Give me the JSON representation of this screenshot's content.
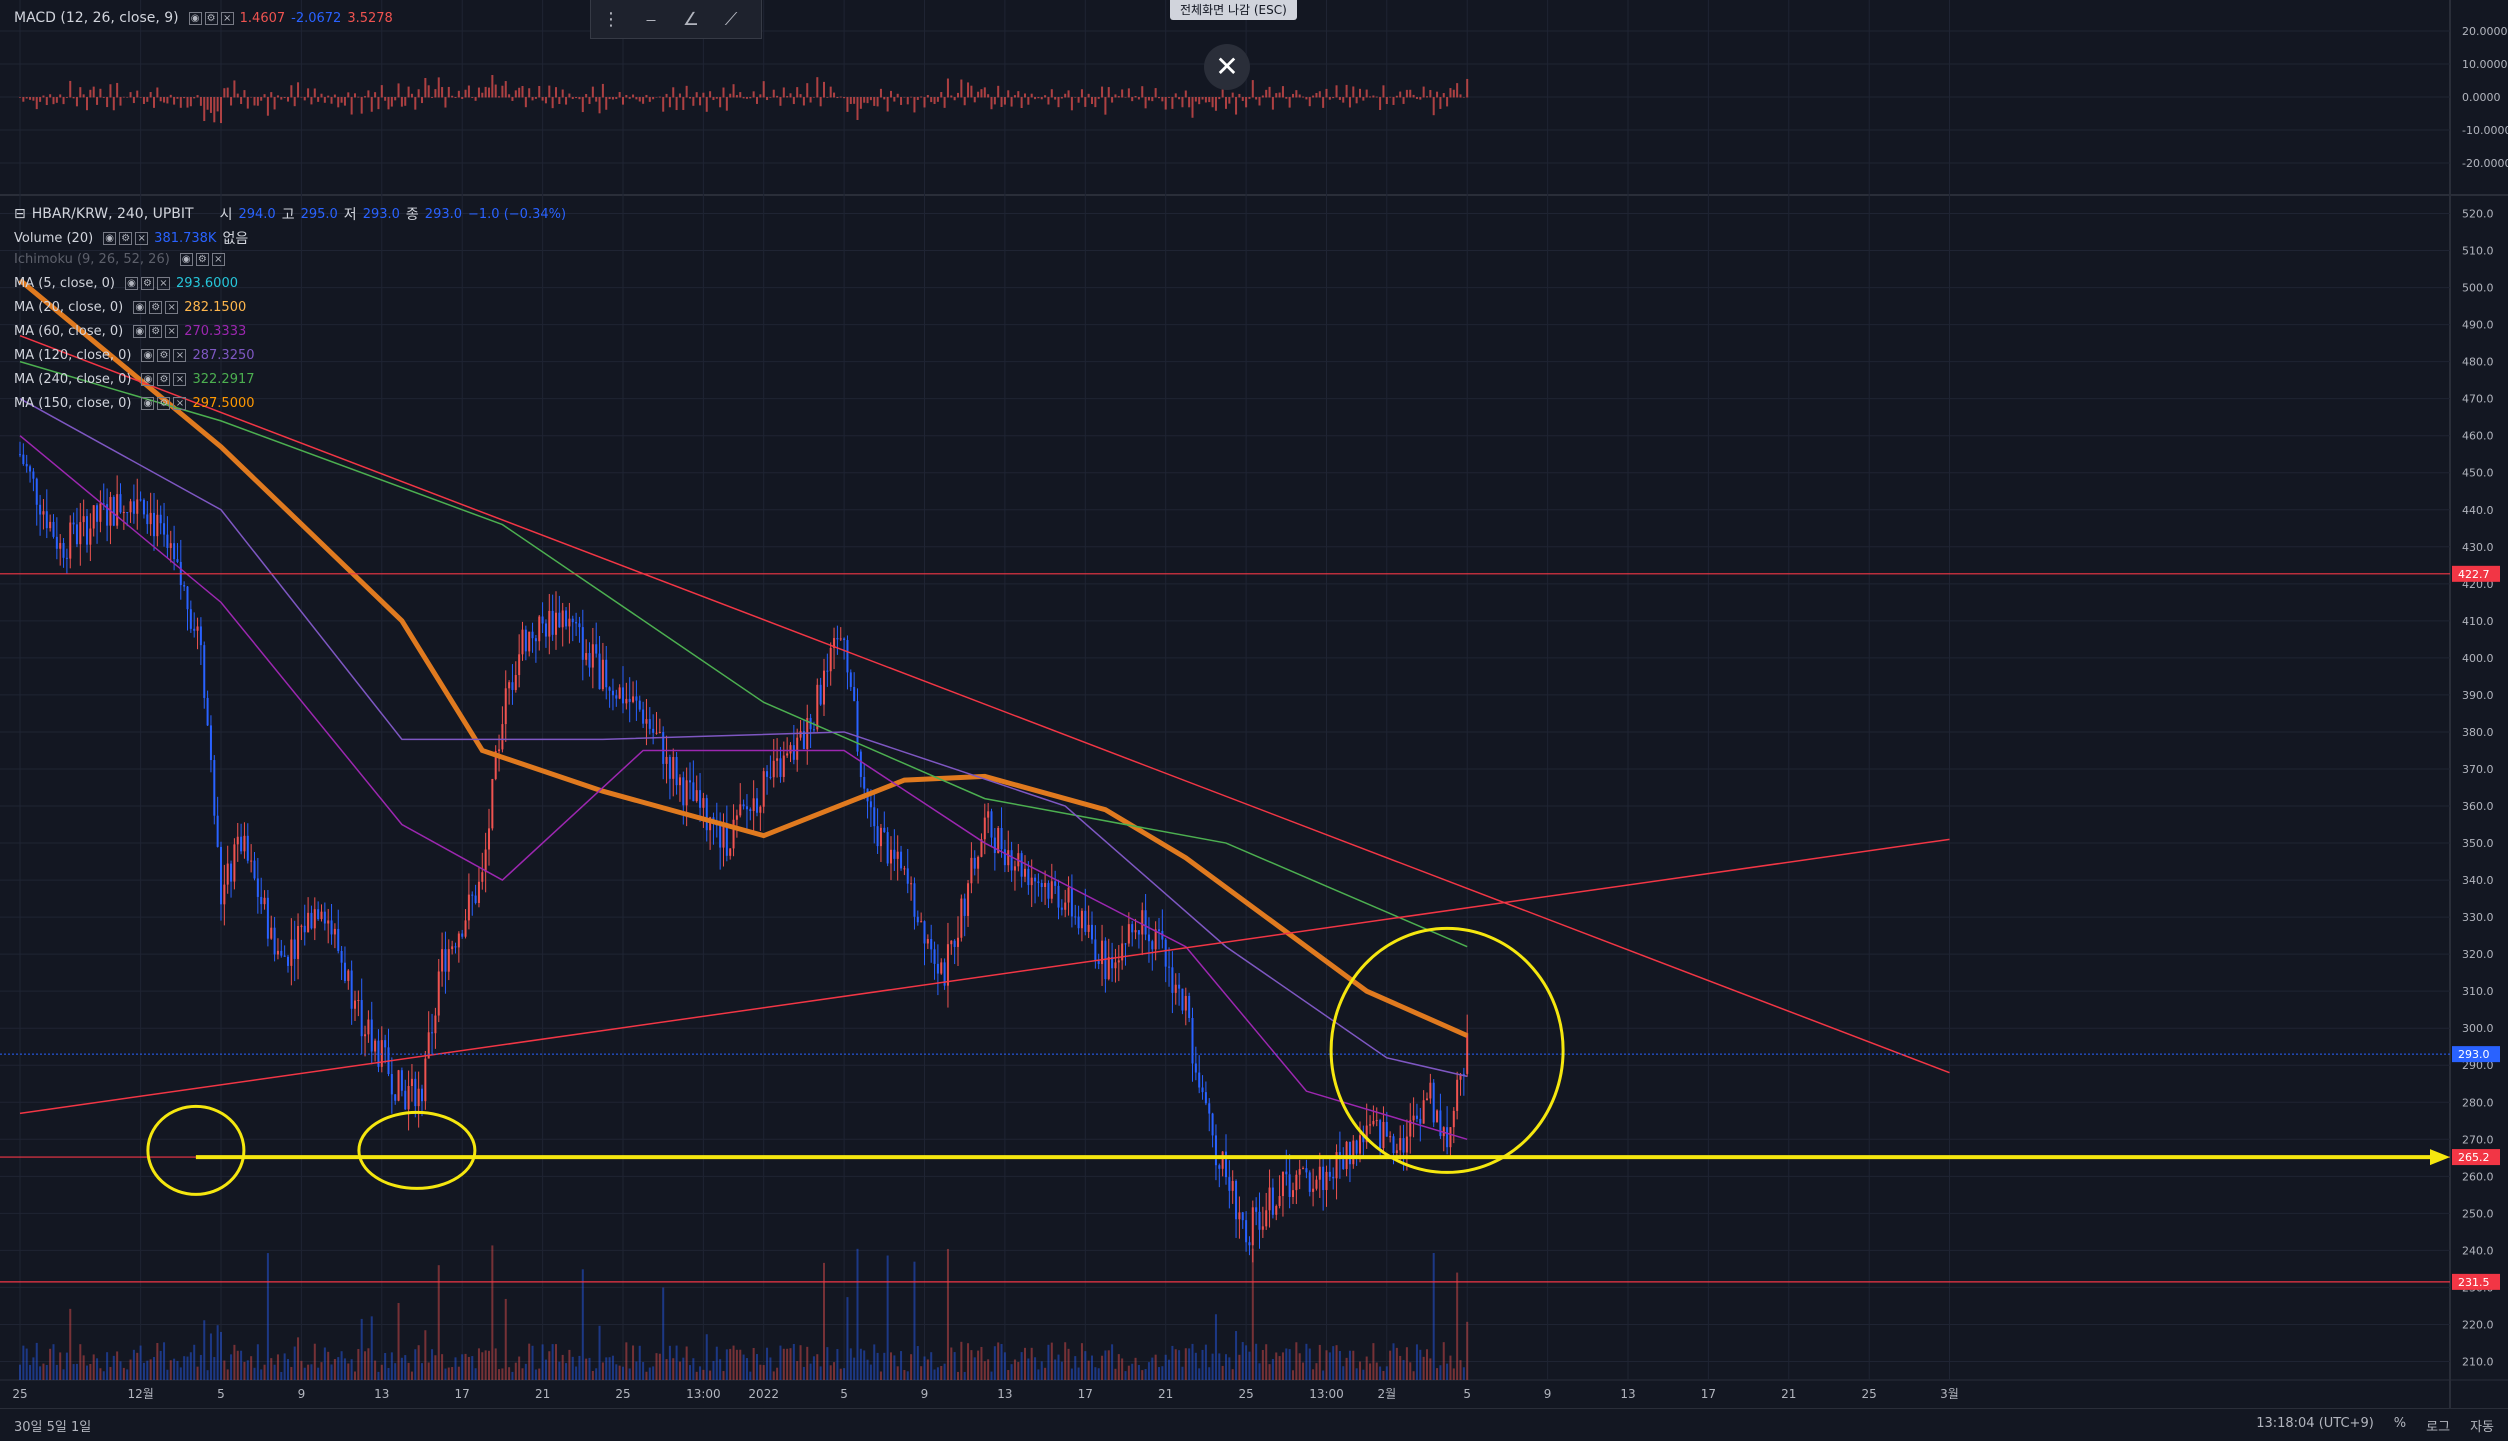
{
  "macd": {
    "title": "MACD (12, 26, close, 9)",
    "v1": "1.4607",
    "v2": "-2.0672",
    "v3": "3.5278",
    "axis_labels": [
      "20.0000",
      "10.0000",
      "0.0000",
      "-10.0000",
      "-20.0000"
    ]
  },
  "toolbar": {
    "icons": [
      "drag-handle-icon",
      "horizontal-line-icon",
      "trend-angle-icon",
      "ray-icon",
      "curve-icon"
    ]
  },
  "fullscreen_exit": "전체화면 나감 (ESC)",
  "main": {
    "symbol": "HBAR/KRW, 240, UPBIT",
    "ohlc": [
      {
        "k": "시",
        "v": "294.0"
      },
      {
        "k": "고",
        "v": "295.0"
      },
      {
        "k": "저",
        "v": "293.0"
      },
      {
        "k": "종",
        "v": "293.0"
      }
    ],
    "change": "−1.0 (−0.34%)",
    "indicators": [
      {
        "label": "Volume (20)",
        "value": "381.738K",
        "extra": "없음",
        "color": "#2962ff"
      },
      {
        "label": "Ichimoku (9, 26, 52, 26)",
        "value": "",
        "extra": "",
        "color": "#5d606b"
      },
      {
        "label": "MA (5, close, 0)",
        "value": "293.6000",
        "extra": "",
        "color": "#26c6da"
      },
      {
        "label": "MA (20, close, 0)",
        "value": "282.1500",
        "extra": "",
        "color": "#ffb74d"
      },
      {
        "label": "MA (60, close, 0)",
        "value": "270.3333",
        "extra": "",
        "color": "#9c27b0"
      },
      {
        "label": "MA (120, close, 0)",
        "value": "287.3250",
        "extra": "",
        "color": "#7e57c2"
      },
      {
        "label": "MA (240, close, 0)",
        "value": "322.2917",
        "extra": "",
        "color": "#4caf50"
      },
      {
        "label": "MA (150, close, 0)",
        "value": "297.5000",
        "extra": "",
        "color": "#ff9800"
      }
    ]
  },
  "price_axis": [
    "520.0",
    "510.0",
    "500.0",
    "490.0",
    "480.0",
    "470.0",
    "460.0",
    "450.0",
    "440.0",
    "430.0",
    "420.0",
    "410.0",
    "400.0",
    "390.0",
    "380.0",
    "370.0",
    "360.0",
    "350.0",
    "340.0",
    "330.0",
    "320.0",
    "310.0",
    "300.0",
    "290.0",
    "280.0",
    "270.0",
    "260.0",
    "250.0",
    "240.0",
    "230.0",
    "220.0",
    "210.0"
  ],
  "price_badges": [
    {
      "label": "422.7",
      "color": "#f23645"
    },
    {
      "label": "293.0",
      "color": "#2962ff"
    },
    {
      "label": "265.2",
      "color": "#f23645"
    },
    {
      "label": "231.5",
      "color": "#f23645"
    }
  ],
  "time_axis": [
    "25",
    "12월",
    "5",
    "9",
    "13",
    "17",
    "21",
    "25",
    "13:00",
    "2022",
    "5",
    "9",
    "13",
    "17",
    "21",
    "25",
    "13:00",
    "2월",
    "5",
    "9",
    "13",
    "17",
    "21",
    "25",
    "3월"
  ],
  "bottom_bar": {
    "timeframes": "30일  5일  1일",
    "clock": "13:18:04 (UTC+9)",
    "right": [
      "%",
      "로그",
      "자동"
    ]
  },
  "colors": {
    "background": "#131722",
    "up": "#ef5350",
    "down": "#2962ff",
    "hline": "#f23645",
    "support": "#f5e70f",
    "ma150": "#e07a1f"
  },
  "chart_data": {
    "type": "candlestick",
    "symbol": "HBAR/KRW",
    "interval": "240",
    "ylim": [
      205,
      525
    ],
    "horizontal_lines": [
      422.7,
      265.2,
      231.5
    ],
    "support_line": 265.2,
    "last_price": 293.0,
    "anchors": [
      [
        "11-25",
        455
      ],
      [
        "11-27",
        430
      ],
      [
        "11-29",
        438
      ],
      [
        "12-01",
        445
      ],
      [
        "12-03",
        420
      ],
      [
        "12-04",
        405
      ],
      [
        "12-05",
        335
      ],
      [
        "12-06",
        350
      ],
      [
        "12-08",
        318
      ],
      [
        "12-10",
        335
      ],
      [
        "12-12",
        302
      ],
      [
        "12-14",
        282
      ],
      [
        "12-15",
        283
      ],
      [
        "12-16",
        318
      ],
      [
        "12-18",
        340
      ],
      [
        "12-19",
        385
      ],
      [
        "12-20",
        405
      ],
      [
        "12-22",
        412
      ],
      [
        "12-24",
        395
      ],
      [
        "12-26",
        385
      ],
      [
        "12-28",
        365
      ],
      [
        "12-30",
        350
      ],
      [
        "01-01",
        365
      ],
      [
        "01-03",
        378
      ],
      [
        "01-05",
        408
      ],
      [
        "01-06",
        360
      ],
      [
        "01-08",
        340
      ],
      [
        "01-10",
        315
      ],
      [
        "01-12",
        355
      ],
      [
        "01-14",
        343
      ],
      [
        "01-16",
        335
      ],
      [
        "01-18",
        318
      ],
      [
        "01-20",
        330
      ],
      [
        "01-22",
        305
      ],
      [
        "01-23",
        275
      ],
      [
        "01-25",
        245
      ],
      [
        "01-27",
        258
      ],
      [
        "01-29",
        260
      ],
      [
        "01-31",
        272
      ],
      [
        "02-02",
        270
      ],
      [
        "02-03",
        283
      ],
      [
        "02-04",
        270
      ],
      [
        "02-05",
        294
      ]
    ],
    "moving_averages": [
      {
        "name": "MA (150, close, 0)",
        "points": [
          [
            "11-25",
            502
          ],
          [
            "12-05",
            457
          ],
          [
            "12-14",
            410
          ],
          [
            "12-18",
            375
          ],
          [
            "12-24",
            364
          ],
          [
            "01-01",
            352
          ],
          [
            "01-08",
            367
          ],
          [
            "01-12",
            368
          ],
          [
            "01-18",
            359
          ],
          [
            "01-22",
            346
          ],
          [
            "01-26",
            330
          ],
          [
            "01-31",
            310
          ],
          [
            "02-05",
            298
          ]
        ]
      },
      {
        "name": "MA (240, close, 0)",
        "points": [
          [
            "11-25",
            480
          ],
          [
            "12-05",
            464
          ],
          [
            "12-19",
            436
          ],
          [
            "01-01",
            388
          ],
          [
            "01-12",
            362
          ],
          [
            "01-24",
            350
          ],
          [
            "02-05",
            322
          ]
        ]
      },
      {
        "name": "MA (60, close, 0)",
        "points": [
          [
            "11-25",
            460
          ],
          [
            "12-05",
            415
          ],
          [
            "12-14",
            355
          ],
          [
            "12-19",
            340
          ],
          [
            "12-26",
            375
          ],
          [
            "01-05",
            375
          ],
          [
            "01-12",
            350
          ],
          [
            "01-22",
            322
          ],
          [
            "01-28",
            283
          ],
          [
            "02-05",
            270
          ]
        ]
      },
      {
        "name": "MA (120, close, 0)",
        "points": [
          [
            "11-25",
            470
          ],
          [
            "12-05",
            440
          ],
          [
            "12-14",
            378
          ],
          [
            "12-24",
            378
          ],
          [
            "01-05",
            380
          ],
          [
            "01-16",
            360
          ],
          [
            "01-24",
            322
          ],
          [
            "02-01",
            292
          ],
          [
            "02-05",
            287
          ]
        ]
      }
    ],
    "trend_lines": [
      {
        "from": [
          "11-25",
          487
        ],
        "to": [
          "02-28",
          288
        ]
      },
      {
        "from": [
          "11-25",
          277
        ],
        "to": [
          "02-28",
          351
        ]
      }
    ],
    "macd_histogram": "0 mid, peaks near ±8",
    "annotations": [
      "yellow circles marking support touches at 12-04, 12-14 and recent rebound at 02-04"
    ]
  }
}
